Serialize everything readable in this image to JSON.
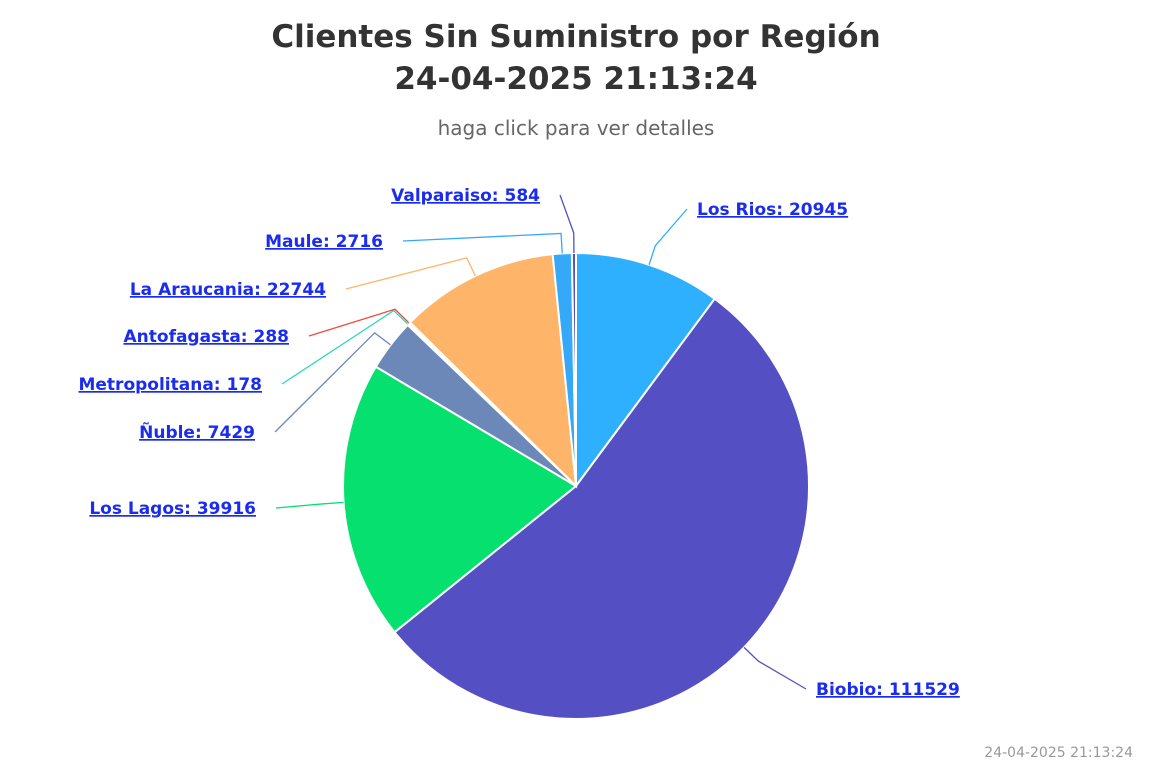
{
  "chart_data": {
    "type": "pie",
    "title": [
      "Clientes Sin Suministro por Región",
      "24-04-2025 21:13:24"
    ],
    "subtitle": "haga click para ver detalles",
    "credits": "24-04-2025 21:13:24",
    "values": [
      20945,
      111529,
      39916,
      7429,
      178,
      288,
      22744,
      2716,
      584
    ],
    "value_labels": [
      "Los Rios: 20945",
      "Biobio: 111529",
      "Los Lagos: 39916",
      "Ñuble: 7429",
      "Metropolitana: 178",
      "Antofagasta: 288",
      "La Araucania: 22744",
      "Maule: 2716",
      "Valparaiso: 584"
    ],
    "colors": [
      "#2fb0fe",
      "#5450c4",
      "#06e06f",
      "#6b88b8",
      "#2ed8b6",
      "#f04b3f",
      "#feb56a",
      "#35a9f7",
      "#5450c4"
    ]
  }
}
